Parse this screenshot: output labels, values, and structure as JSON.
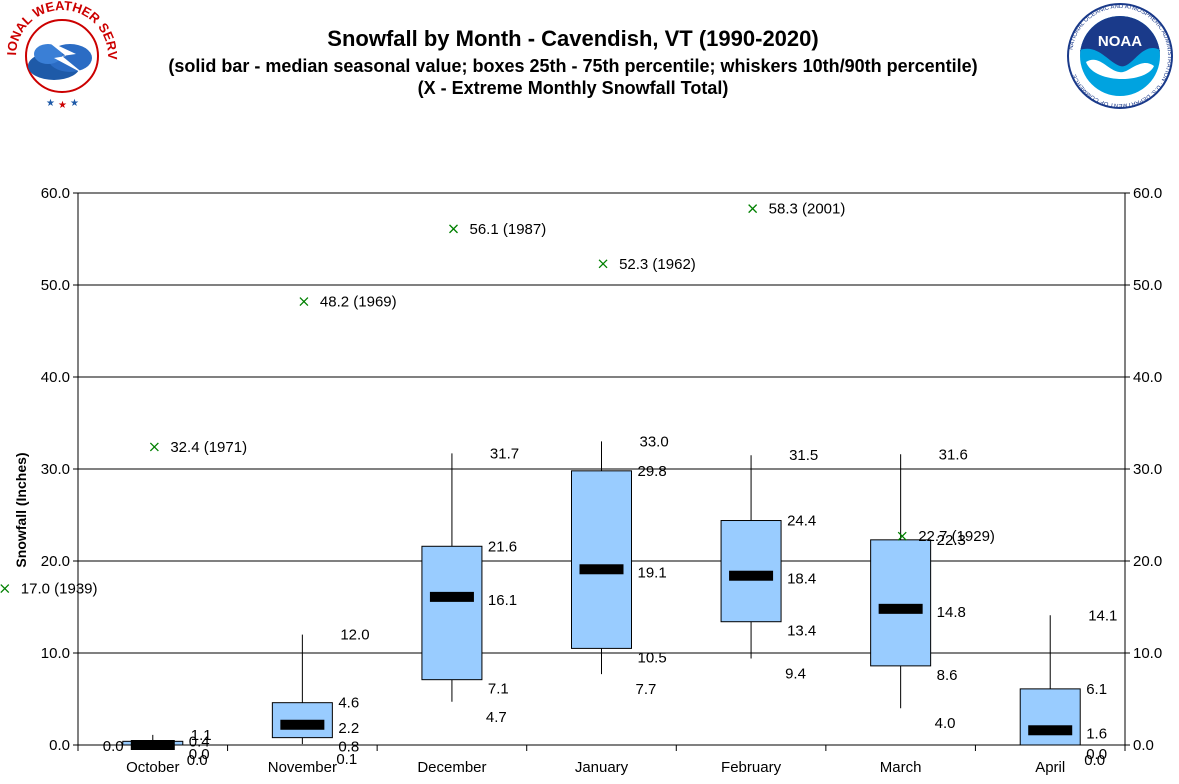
{
  "title": "Snowfall by Month - Cavendish, VT (1990-2020)",
  "subtitle": "(solid bar - median seasonal value; boxes 25th - 75th percentile; whiskers 10th/90th percentile) (X - Extreme Monthly Snowfall Total)",
  "logos": {
    "left": {
      "icon": "nws-logo",
      "text": "NATIONAL WEATHER SERVICE"
    },
    "right": {
      "icon": "noaa-logo",
      "text": "NOAA",
      "ring_text": "NATIONAL OCEANIC AND ATMOSPHERIC ADMINISTRATION · U.S. DEPARTMENT OF COMMERCE"
    }
  },
  "colors": {
    "box_fill": "#99ccff",
    "median": "#000000",
    "extreme_marker": "#008000",
    "grid": "#000000"
  },
  "chart_data": {
    "type": "box",
    "ylabel": "Snowfall (Inches)",
    "ylim": [
      0,
      60
    ],
    "yticks": [
      "0.0",
      "10.0",
      "20.0",
      "30.0",
      "40.0",
      "50.0",
      "60.0"
    ],
    "grid": true,
    "categories": [
      "October",
      "November",
      "December",
      "January",
      "February",
      "March",
      "April"
    ],
    "series": [
      {
        "month": "October",
        "p10": 0.0,
        "p25": 0.0,
        "median": 0.0,
        "p75": 0.4,
        "p90": 1.1,
        "labels": {
          "p10": "0.0",
          "p25": "0.0",
          "median": "",
          "p75": "0.4",
          "p90": "1.1",
          "min": "0.0"
        },
        "extreme": {
          "value": 17.0,
          "label": "17.0 (1939)"
        }
      },
      {
        "month": "November",
        "p10": 0.1,
        "p25": 0.8,
        "median": 2.2,
        "p75": 4.6,
        "p90": 12.0,
        "labels": {
          "p10": "0.1",
          "p25": "0.8",
          "median": "2.2",
          "p75": "4.6",
          "p90": "12.0"
        },
        "extreme": {
          "value": 32.4,
          "label": "32.4 (1971)"
        }
      },
      {
        "month": "December",
        "p10": 4.7,
        "p25": 7.1,
        "median": 16.1,
        "p75": 21.6,
        "p90": 31.7,
        "labels": {
          "p10": "4.7",
          "p25": "7.1",
          "median": "16.1",
          "p75": "21.6",
          "p90": "31.7"
        },
        "extreme": {
          "value": 48.2,
          "label": "48.2 (1969)"
        }
      },
      {
        "month": "January",
        "p10": 7.7,
        "p25": 10.5,
        "median": 19.1,
        "p75": 29.8,
        "p90": 33.0,
        "labels": {
          "p10": "7.7",
          "p25": "10.5",
          "median": "19.1",
          "p75": "29.8",
          "p90": "33.0"
        },
        "extreme": {
          "value": 56.1,
          "label": "56.1 (1987)"
        }
      },
      {
        "month": "February",
        "p10": 9.4,
        "p25": 13.4,
        "median": 18.4,
        "p75": 24.4,
        "p90": 31.5,
        "labels": {
          "p10": "9.4",
          "p25": "13.4",
          "median": "18.4",
          "p75": "24.4",
          "p90": "31.5"
        },
        "extreme": {
          "value": 52.3,
          "label": "52.3 (1962)"
        }
      },
      {
        "month": "March",
        "p10": 4.0,
        "p25": 8.6,
        "median": 14.8,
        "p75": 22.3,
        "p90": 31.6,
        "labels": {
          "p10": "4.0",
          "p25": "8.6",
          "median": "14.8",
          "p75": "22.3",
          "p90": "31.6"
        },
        "extreme": {
          "value": 58.3,
          "label": "58.3 (2001)"
        }
      },
      {
        "month": "April",
        "p10": 0.0,
        "p25": 0.0,
        "median": 1.6,
        "p75": 6.1,
        "p90": 14.1,
        "labels": {
          "p10": "0.0",
          "p25": "0.0",
          "median": "1.6",
          "p75": "6.1",
          "p90": "14.1"
        },
        "extreme": {
          "value": 22.7,
          "label": "22.7 (1929)"
        }
      }
    ]
  }
}
